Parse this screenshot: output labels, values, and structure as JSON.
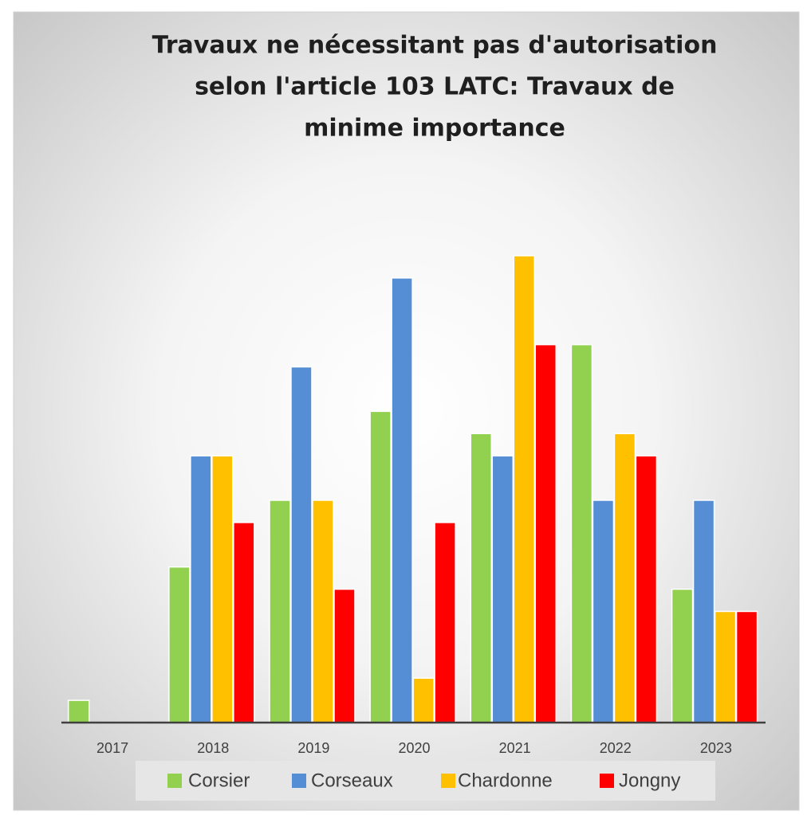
{
  "chart_data": {
    "type": "bar",
    "title": [
      "Travaux ne nécessitant pas d'autorisation",
      "selon l'article 103 LATC: Travaux de",
      "minime importance"
    ],
    "categories": [
      "2017",
      "2018",
      "2019",
      "2020",
      "2021",
      "2022",
      "2023"
    ],
    "series": [
      {
        "name": "Corsier",
        "color": "#92d050",
        "values": [
          1,
          7,
          10,
          14,
          13,
          17,
          6
        ]
      },
      {
        "name": "Corseaux",
        "color": "#558ed5",
        "values": [
          0,
          12,
          16,
          20,
          12,
          10,
          10
        ]
      },
      {
        "name": "Chardonne",
        "color": "#ffc000",
        "values": [
          0,
          12,
          10,
          2,
          21,
          13,
          5
        ]
      },
      {
        "name": "Jongny",
        "color": "#ff0000",
        "values": [
          0,
          9,
          6,
          9,
          17,
          12,
          5
        ]
      }
    ],
    "legend": "bottom"
  }
}
